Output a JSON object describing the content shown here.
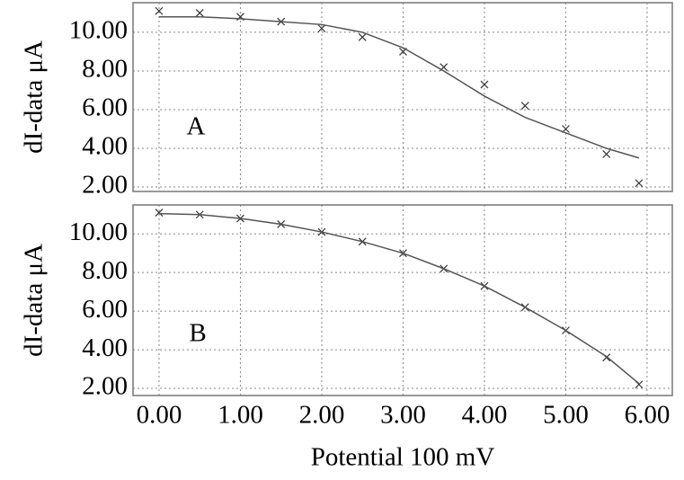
{
  "chart_data": [
    {
      "type": "line",
      "ylabel": "dI-data μA",
      "annotation": "A",
      "grid": true,
      "xlim": [
        -0.32,
        6.31
      ],
      "ylim": [
        1.77,
        11.53
      ],
      "yticks": [
        {
          "value": 2,
          "label": "2.00"
        },
        {
          "value": 4,
          "label": "4.00"
        },
        {
          "value": 6,
          "label": "6.00"
        },
        {
          "value": 8,
          "label": "8.00"
        },
        {
          "value": 10,
          "label": "10.00"
        }
      ],
      "x": [
        0,
        0.5,
        1,
        1.5,
        2,
        2.5,
        3,
        3.5,
        4,
        4.5,
        5,
        5.5,
        5.9
      ],
      "series": [
        {
          "marker": "x",
          "color": "#333333",
          "values": [
            11.1,
            11.0,
            10.8,
            10.55,
            10.2,
            9.75,
            9.0,
            8.2,
            7.3,
            6.2,
            5.0,
            3.7,
            2.2
          ]
        },
        {
          "marker": "none",
          "color": "#555555",
          "values": [
            10.8,
            10.8,
            10.7,
            10.55,
            10.4,
            10.0,
            9.2,
            8.0,
            6.7,
            5.6,
            4.8,
            4.0,
            3.5
          ]
        }
      ]
    },
    {
      "type": "line",
      "ylabel": "dI-data μA",
      "annotation": "B",
      "xlabel": "Potential 100 mV",
      "grid": true,
      "xlim": [
        -0.32,
        6.31
      ],
      "ylim": [
        1.63,
        11.5
      ],
      "xticks": [
        {
          "value": 0,
          "label": "0.00"
        },
        {
          "value": 1,
          "label": "1.00"
        },
        {
          "value": 2,
          "label": "2.00"
        },
        {
          "value": 3,
          "label": "3.00"
        },
        {
          "value": 4,
          "label": "4.00"
        },
        {
          "value": 5,
          "label": "5.00"
        },
        {
          "value": 6,
          "label": "6.00"
        }
      ],
      "yticks": [
        {
          "value": 2,
          "label": "2.00"
        },
        {
          "value": 4,
          "label": "4.00"
        },
        {
          "value": 6,
          "label": "6.00"
        },
        {
          "value": 8,
          "label": "8.00"
        },
        {
          "value": 10,
          "label": "10.00"
        }
      ],
      "x": [
        0,
        0.5,
        1,
        1.5,
        2,
        2.5,
        3,
        3.5,
        4,
        4.5,
        5,
        5.5,
        5.9
      ],
      "series": [
        {
          "marker": "x",
          "color": "#333333",
          "values": [
            11.1,
            11.0,
            10.8,
            10.5,
            10.1,
            9.6,
            9.0,
            8.2,
            7.3,
            6.2,
            5.0,
            3.6,
            2.2
          ]
        },
        {
          "marker": "none",
          "color": "#555555",
          "values": [
            11.05,
            11.0,
            10.8,
            10.5,
            10.1,
            9.6,
            9.0,
            8.2,
            7.3,
            6.2,
            5.0,
            3.65,
            2.25
          ]
        }
      ]
    }
  ]
}
